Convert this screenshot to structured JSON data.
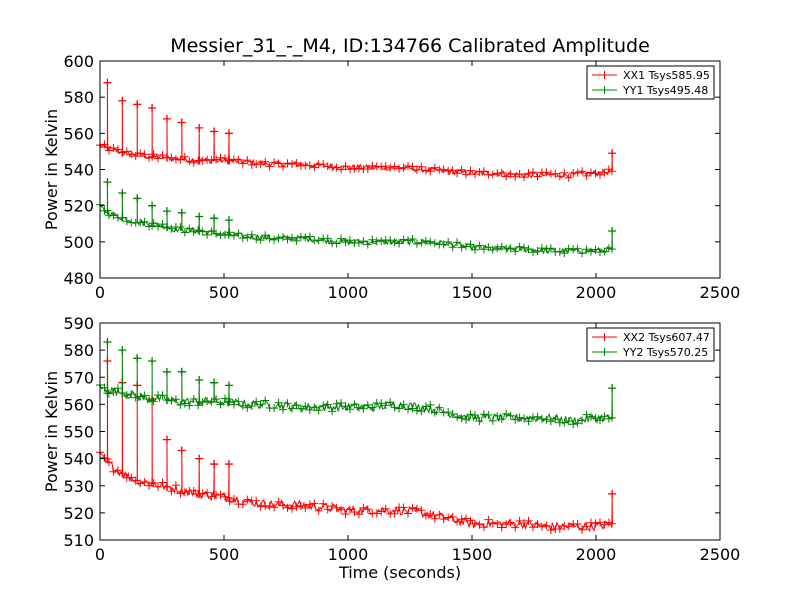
{
  "figure": {
    "title": "Messier_31_-_M4, ID:134766 Calibrated Amplitude"
  },
  "chart_data": [
    {
      "type": "line",
      "title": "Messier_31_-_M4, ID:134766 Calibrated Amplitude",
      "xlabel": "",
      "ylabel": "Power in Kelvin",
      "xlim": [
        0,
        2500
      ],
      "ylim": [
        480,
        600
      ],
      "xticks": [
        0,
        500,
        1000,
        1500,
        2000,
        2500
      ],
      "yticks": [
        480,
        500,
        520,
        540,
        560,
        580,
        600
      ],
      "grid": false,
      "legend_position": "top-right",
      "marker": "+",
      "series": [
        {
          "name": "XX1 Tsys585.95",
          "color": "#ff0000",
          "x": [
            0,
            50,
            100,
            150,
            200,
            250,
            300,
            400,
            500,
            600,
            700,
            800,
            900,
            1000,
            1100,
            1200,
            1300,
            1400,
            1500,
            1600,
            1700,
            1800,
            1900,
            2000,
            2065
          ],
          "y": [
            553,
            551,
            549,
            548,
            547,
            547,
            546,
            545,
            545,
            544,
            543,
            543,
            542,
            541,
            541,
            541,
            540,
            539,
            538,
            538,
            537,
            537,
            537,
            538,
            539
          ],
          "spikes": [
            {
              "x": 30,
              "y": 588
            },
            {
              "x": 90,
              "y": 578
            },
            {
              "x": 150,
              "y": 576
            },
            {
              "x": 210,
              "y": 574
            },
            {
              "x": 270,
              "y": 568
            },
            {
              "x": 330,
              "y": 566
            },
            {
              "x": 400,
              "y": 563
            },
            {
              "x": 460,
              "y": 561
            },
            {
              "x": 520,
              "y": 560
            },
            {
              "x": 2065,
              "y": 549
            }
          ]
        },
        {
          "name": "YY1 Tsys495.48",
          "color": "#008000",
          "x": [
            0,
            50,
            100,
            150,
            200,
            250,
            300,
            400,
            500,
            600,
            700,
            800,
            900,
            1000,
            1100,
            1200,
            1300,
            1400,
            1500,
            1600,
            1700,
            1800,
            1900,
            2000,
            2065
          ],
          "y": [
            519,
            515,
            513,
            511,
            510,
            509,
            507,
            506,
            504,
            503,
            502,
            502,
            501,
            500,
            500,
            500,
            500,
            499,
            497,
            496,
            496,
            495,
            495,
            495,
            496
          ],
          "spikes": [
            {
              "x": 30,
              "y": 533
            },
            {
              "x": 90,
              "y": 527
            },
            {
              "x": 150,
              "y": 524
            },
            {
              "x": 210,
              "y": 520
            },
            {
              "x": 270,
              "y": 517
            },
            {
              "x": 330,
              "y": 516
            },
            {
              "x": 400,
              "y": 514
            },
            {
              "x": 460,
              "y": 513
            },
            {
              "x": 520,
              "y": 512
            },
            {
              "x": 2065,
              "y": 506
            }
          ]
        }
      ]
    },
    {
      "type": "line",
      "title": "",
      "xlabel": "Time (seconds)",
      "ylabel": "Power in Kelvin",
      "xlim": [
        0,
        2500
      ],
      "ylim": [
        510,
        590
      ],
      "xticks": [
        0,
        500,
        1000,
        1500,
        2000,
        2500
      ],
      "yticks": [
        510,
        520,
        530,
        540,
        550,
        560,
        570,
        580,
        590
      ],
      "grid": false,
      "legend_position": "top-right",
      "marker": "+",
      "series": [
        {
          "name": "XX2 Tsys607.47",
          "color": "#ff0000",
          "x": [
            0,
            50,
            100,
            150,
            200,
            250,
            300,
            400,
            500,
            600,
            700,
            800,
            900,
            1000,
            1100,
            1200,
            1300,
            1400,
            1500,
            1600,
            1700,
            1800,
            1900,
            2000,
            2065
          ],
          "y": [
            541,
            537,
            534,
            532,
            531,
            530,
            529,
            527,
            526,
            524,
            523,
            523,
            522,
            521,
            521,
            521,
            520,
            518,
            516,
            516,
            516,
            515,
            515,
            515,
            516
          ],
          "spikes": [
            {
              "x": 30,
              "y": 576
            },
            {
              "x": 90,
              "y": 568
            },
            {
              "x": 150,
              "y": 567
            },
            {
              "x": 210,
              "y": 562
            },
            {
              "x": 270,
              "y": 547
            },
            {
              "x": 330,
              "y": 543
            },
            {
              "x": 400,
              "y": 540
            },
            {
              "x": 460,
              "y": 538
            },
            {
              "x": 520,
              "y": 538
            },
            {
              "x": 2065,
              "y": 527
            }
          ]
        },
        {
          "name": "YY2 Tsys570.25",
          "color": "#008000",
          "x": [
            0,
            50,
            100,
            150,
            200,
            250,
            300,
            400,
            500,
            600,
            700,
            800,
            900,
            1000,
            1100,
            1200,
            1300,
            1400,
            1500,
            1600,
            1700,
            1800,
            1900,
            2000,
            2065
          ],
          "y": [
            566,
            565,
            564,
            563,
            562,
            562,
            561,
            561,
            561,
            560,
            560,
            559,
            559,
            559,
            559,
            560,
            559,
            557,
            555,
            555,
            555,
            555,
            554,
            555,
            555
          ],
          "spikes": [
            {
              "x": 30,
              "y": 583
            },
            {
              "x": 90,
              "y": 580
            },
            {
              "x": 150,
              "y": 577
            },
            {
              "x": 210,
              "y": 576
            },
            {
              "x": 270,
              "y": 572
            },
            {
              "x": 330,
              "y": 572
            },
            {
              "x": 400,
              "y": 569
            },
            {
              "x": 460,
              "y": 568
            },
            {
              "x": 520,
              "y": 567
            },
            {
              "x": 2065,
              "y": 566
            }
          ]
        }
      ]
    }
  ]
}
